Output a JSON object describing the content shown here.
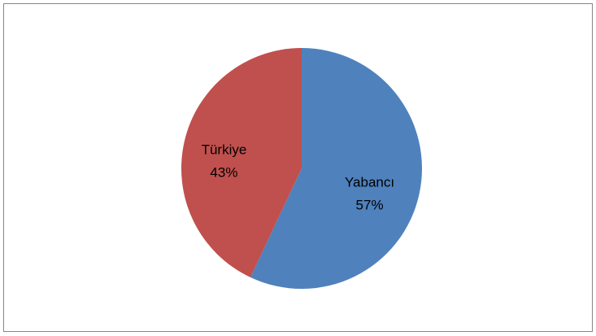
{
  "chart_data": {
    "type": "pie",
    "categories": [
      "Yabancı",
      "Türkiye"
    ],
    "values": [
      57,
      43
    ],
    "value_labels": [
      "57%",
      "43%"
    ],
    "colors": [
      "#4f81bd",
      "#c0504d"
    ]
  }
}
